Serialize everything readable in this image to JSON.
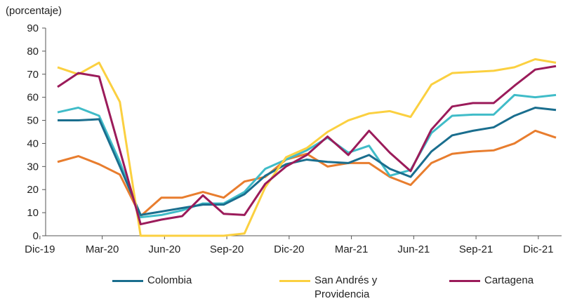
{
  "chart_data": {
    "type": "line",
    "y_label": "(porcentaje)",
    "categories": [
      "Dic-19",
      null,
      null,
      "Mar-20",
      null,
      null,
      "Jun-20",
      null,
      null,
      "Sep-20",
      null,
      null,
      "Dic-20",
      null,
      null,
      "Mar-21",
      null,
      null,
      "Jun-21",
      null,
      null,
      "Sep-21",
      null,
      null,
      "Dic-21"
    ],
    "series": [
      {
        "color": "#e87d2e",
        "values": [
          32,
          34.5,
          31,
          26.5,
          8.5,
          16.5,
          16.5,
          19,
          16.5,
          23.5,
          25.5,
          33,
          35.5,
          30,
          31.5,
          31.5,
          25.5,
          22,
          31.5,
          35.5,
          36.5,
          37,
          40,
          45.5,
          42.5
        ]
      },
      {
        "color": "#40bcc8",
        "values": [
          53.5,
          55.5,
          52,
          32,
          8,
          9,
          11,
          14,
          14,
          19,
          29,
          33,
          37,
          42.5,
          36,
          39,
          26,
          28.5,
          44.5,
          52,
          52.5,
          52.5,
          61,
          60,
          61
        ]
      },
      {
        "name": "Colombia",
        "color": "#1a6e8e",
        "values": [
          50,
          50,
          50.5,
          30,
          9,
          10.5,
          12,
          13.5,
          13.5,
          18,
          26,
          31,
          33,
          32,
          31.5,
          35,
          29,
          25.5,
          36.5,
          43.5,
          45.5,
          47,
          52,
          55.5,
          54.5
        ]
      },
      {
        "name": "San Andrés y Providencia",
        "color": "#fbd040",
        "values": [
          73,
          70,
          75,
          58,
          0,
          0,
          0,
          0,
          0,
          1,
          21,
          34,
          38,
          45,
          50,
          53,
          54,
          51.5,
          65.5,
          70.5,
          71,
          71.5,
          73,
          76.5,
          75
        ]
      },
      {
        "name": "Cartagena",
        "color": "#9b1b5a",
        "values": [
          64.5,
          70.5,
          69,
          37,
          5,
          7,
          8.5,
          17.5,
          9.5,
          9,
          22.5,
          30,
          35,
          43,
          35,
          45.5,
          36,
          28,
          46,
          56,
          57.5,
          57.5,
          65,
          72,
          73.5
        ]
      }
    ],
    "ylim": [
      0,
      90
    ],
    "yticks": [
      0,
      10,
      20,
      30,
      40,
      50,
      60,
      70,
      80,
      90
    ]
  }
}
